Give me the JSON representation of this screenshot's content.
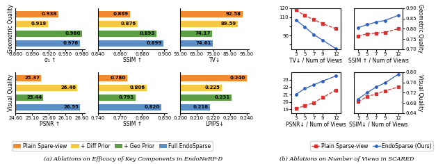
{
  "chart_data": [
    {
      "type": "bar",
      "orientation": "horizontal",
      "categories": [
        "Plain Spare-view",
        "+ Diff Prior",
        "+ Geo Prior",
        "Full EndoSparse"
      ],
      "colors": [
        "#F28B30",
        "#F5C842",
        "#5B9E45",
        "#5B8EC4"
      ],
      "values": [
        0.938,
        0.919,
        0.98,
        0.976
      ],
      "value_labels": [
        "0.938",
        "0.919",
        "0.980",
        "0.976"
      ],
      "data_labels": true,
      "xlabel": "σ₁ ↑",
      "ylabel": "Geometric Quality",
      "xlim": [
        0.86,
        0.9848
      ],
      "xticks": [
        {
          "value": 0.86,
          "label": "0.860"
        },
        {
          "value": 0.89,
          "label": "0.890"
        },
        {
          "value": 0.92,
          "label": "0.920"
        },
        {
          "value": 0.95,
          "label": "0.950"
        },
        {
          "value": 0.98,
          "label": "0.980"
        }
      ],
      "tick_labels": "x",
      "legend": "lower left"
    },
    {
      "type": "bar",
      "orientation": "horizontal",
      "categories": [
        "Plain Spare-view",
        "+ Diff Prior",
        "+ Geo Prior",
        "Full EndoSparse"
      ],
      "colors": [
        "#F28B30",
        "#F5C842",
        "#5B9E45",
        "#5B8EC4"
      ],
      "values": [
        0.869,
        0.876,
        0.893,
        0.899
      ],
      "value_labels": [
        "0.869",
        "0.876",
        "0.893",
        "0.899"
      ],
      "data_labels": true,
      "xlabel": "SSIM ↑",
      "xlim": [
        0.84,
        0.9024
      ],
      "xticks": [
        {
          "value": 0.84,
          "label": "0.840"
        },
        {
          "value": 0.86,
          "label": "0.860"
        },
        {
          "value": 0.88,
          "label": "0.880"
        },
        {
          "value": 0.9,
          "label": "0.900"
        }
      ],
      "tick_labels": "x"
    },
    {
      "type": "bar",
      "orientation": "horizontal",
      "categories": [
        "Plain Spare-view",
        "+ Diff Prior",
        "+ Geo Prior",
        "Full EndoSparse"
      ],
      "colors": [
        "#F28B30",
        "#F5C842",
        "#5B9E45",
        "#5B8EC4"
      ],
      "values": [
        92.58,
        89.59,
        74.17,
        74.61
      ],
      "value_labels": [
        "92.58",
        "89.59",
        "74.17",
        "74.61"
      ],
      "data_labels": true,
      "xlabel": "TV↓",
      "xlim": [
        55,
        96.6
      ],
      "xticks": [
        {
          "value": 55,
          "label": "55.00"
        },
        {
          "value": 65,
          "label": "65.00"
        },
        {
          "value": 75,
          "label": "75.00"
        },
        {
          "value": 85,
          "label": "85.00"
        },
        {
          "value": 95,
          "label": "95.00"
        }
      ],
      "tick_labels": "x"
    },
    {
      "type": "bar",
      "orientation": "horizontal",
      "categories": [
        "Plain Spare-view",
        "+ Diff Prior",
        "+ Geo Prior",
        "Full EndoSparse"
      ],
      "colors": [
        "#F28B30",
        "#F5C842",
        "#5B9E45",
        "#5B8EC4"
      ],
      "values": [
        25.37,
        26.46,
        25.44,
        26.55
      ],
      "value_labels": [
        "25.37",
        "26.46",
        "25.44",
        "26.55"
      ],
      "data_labels": true,
      "xlabel": "PSNR ↑",
      "ylabel": "Visual Quality",
      "xlim": [
        24.6,
        26.68
      ],
      "xticks": [
        {
          "value": 24.6,
          "label": "24.60"
        },
        {
          "value": 25.1,
          "label": "25.10"
        },
        {
          "value": 25.6,
          "label": "25.60"
        },
        {
          "value": 26.1,
          "label": "26.10"
        },
        {
          "value": 26.6,
          "label": "26.60"
        }
      ],
      "tick_labels": "x"
    },
    {
      "type": "bar",
      "orientation": "horizontal",
      "categories": [
        "Plain Spare-view",
        "+ Diff Prior",
        "+ Geo Prior",
        "Full EndoSparse"
      ],
      "colors": [
        "#F28B30",
        "#F5C842",
        "#5B9E45",
        "#5B8EC4"
      ],
      "values": [
        0.78,
        0.806,
        0.791,
        0.826
      ],
      "value_labels": [
        "0.780",
        "0.806",
        "0.791",
        "0.826"
      ],
      "data_labels": true,
      "xlabel": "SSIM ↑",
      "xlim": [
        0.74,
        0.8336
      ],
      "xticks": [
        {
          "value": 0.74,
          "label": "0.740"
        },
        {
          "value": 0.77,
          "label": "0.770"
        },
        {
          "value": 0.8,
          "label": "0.800"
        },
        {
          "value": 0.83,
          "label": "0.830"
        }
      ],
      "tick_labels": "x"
    },
    {
      "type": "bar",
      "orientation": "horizontal",
      "categories": [
        "Plain Spare-view",
        "+ Diff Prior",
        "+ Geo Prior",
        "Full EndoSparse"
      ],
      "colors": [
        "#F28B30",
        "#F5C842",
        "#5B9E45",
        "#5B8EC4"
      ],
      "values": [
        0.24,
        0.225,
        0.231,
        0.218
      ],
      "value_labels": [
        "0.240",
        "0.225",
        "0.231",
        "0.218"
      ],
      "data_labels": true,
      "xlabel": "LPIPS↓",
      "xlim": [
        0.2,
        0.2416
      ],
      "xticks": [
        {
          "value": 0.2,
          "label": "0.200"
        },
        {
          "value": 0.21,
          "label": "0.210"
        },
        {
          "value": 0.22,
          "label": "0.220"
        },
        {
          "value": 0.23,
          "label": "0.230"
        },
        {
          "value": 0.24,
          "label": "0.240"
        }
      ],
      "tick_labels": "x"
    },
    {
      "type": "line",
      "x": [
        3,
        5,
        7,
        9,
        12
      ],
      "xlim": [
        2,
        13
      ],
      "xticks": [
        3,
        5,
        7,
        9,
        12
      ],
      "xlabel": "TV↓ / Num of Views",
      "ylim": [
        75,
        120
      ],
      "yticks": [
        {
          "value": 80,
          "label": ""
        },
        90,
        {
          "value": 100,
          "label": ""
        },
        110,
        120
      ],
      "legend": "lower right",
      "series": [
        {
          "name": "Plain Sparse-view",
          "color": "#D93030",
          "line_style": "dashed",
          "marker": "square",
          "values": [
            118.0,
            112.0,
            107.5,
            103.0,
            97.5
          ]
        },
        {
          "name": "EndoSparse (Ours)",
          "color": "#3060C0",
          "line_style": "solid",
          "marker": "circle",
          "values": [
            107.0,
            99.5,
            91.0,
            85.0,
            75.5
          ]
        }
      ]
    },
    {
      "type": "line",
      "x": [
        3,
        5,
        7,
        9,
        12
      ],
      "xlim": [
        2,
        13
      ],
      "xticks": [
        3,
        5,
        7,
        9,
        12
      ],
      "xlabel": "SSIM ↑ / Num of Views",
      "ylabel": "Geometric Quality",
      "ylim": [
        0.7,
        0.9
      ],
      "yticks": [
        {
          "value": 0.7,
          "label": "0.70"
        },
        {
          "value": 0.75,
          "label": "0.75"
        },
        {
          "value": 0.8,
          "label": "0.80"
        },
        {
          "value": 0.85,
          "label": "0.85"
        },
        {
          "value": 0.9,
          "label": "0.90"
        }
      ],
      "series": [
        {
          "name": "Plain Sparse-view",
          "color": "#D93030",
          "line_style": "dashed",
          "marker": "square",
          "values": [
            0.765,
            0.775,
            0.778,
            0.782,
            0.8
          ]
        },
        {
          "name": "EndoSparse (Ours)",
          "color": "#3060C0",
          "line_style": "solid",
          "marker": "circle",
          "values": [
            0.805,
            0.82,
            0.832,
            0.84,
            0.865
          ]
        }
      ]
    },
    {
      "type": "line",
      "x": [
        3,
        5,
        7,
        9,
        12
      ],
      "xlim": [
        2,
        13
      ],
      "xticks": [
        3,
        5,
        7,
        9,
        12
      ],
      "xlabel": "PSNR↓ / Num of Views",
      "ylim": [
        18.5,
        24
      ],
      "yticks": [
        19,
        20,
        21,
        22,
        23
      ],
      "series": [
        {
          "name": "Plain Sparse-view",
          "color": "#D93030",
          "line_style": "dashed",
          "marker": "square",
          "values": [
            19.1,
            19.5,
            19.9,
            20.6,
            21.6
          ]
        },
        {
          "name": "EndoSparse (Ours)",
          "color": "#3060C0",
          "line_style": "solid",
          "marker": "circle",
          "values": [
            21.0,
            21.8,
            22.3,
            22.8,
            23.5
          ]
        }
      ]
    },
    {
      "type": "line",
      "x": [
        3,
        5,
        7,
        9,
        12
      ],
      "xlim": [
        2,
        13
      ],
      "xticks": [
        3,
        5,
        7,
        9,
        12
      ],
      "xlabel": "SSIM↓ / Num of Views",
      "ylabel": "Visual Quality",
      "ylim": [
        0.64,
        0.8
      ],
      "yticks": [
        {
          "value": 0.64,
          "label": "0.64"
        },
        {
          "value": 0.68,
          "label": "0.68"
        },
        {
          "value": 0.72,
          "label": "0.72"
        },
        {
          "value": 0.76,
          "label": "0.76"
        },
        {
          "value": 0.8,
          "label": "0.80"
        }
      ],
      "series": [
        {
          "name": "Plain Sparse-view",
          "color": "#D93030",
          "line_style": "dashed",
          "marker": "square",
          "values": [
            0.685,
            0.705,
            0.715,
            0.727,
            0.742
          ]
        },
        {
          "name": "EndoSparse (Ours)",
          "color": "#3060C0",
          "line_style": "solid",
          "marker": "circle",
          "values": [
            0.695,
            0.72,
            0.742,
            0.758,
            0.792
          ]
        }
      ]
    }
  ],
  "annotations": [
    "(a) Ablations on Efficacy of Key Components in EndoNeRF-D",
    "(b) Ablations on Number of Views in SCARED"
  ]
}
